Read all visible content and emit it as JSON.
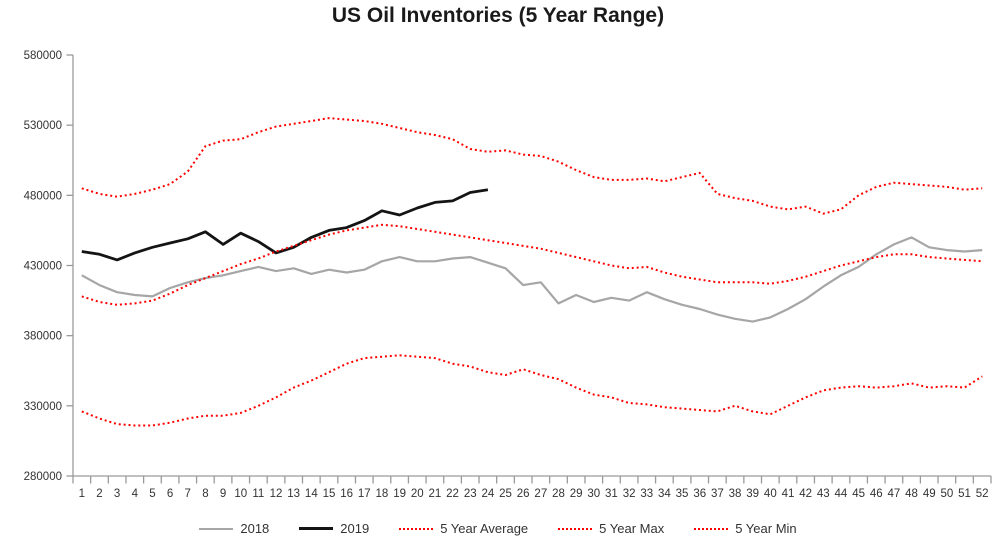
{
  "chart_data": {
    "type": "line",
    "title": "US Oil Inventories (5 Year Range)",
    "xlabel": "",
    "ylabel": "",
    "ylim": [
      280000,
      580000
    ],
    "ytick_step": 50000,
    "y_ticks": [
      580000,
      530000,
      480000,
      430000,
      380000,
      330000,
      280000
    ],
    "x": [
      1,
      2,
      3,
      4,
      5,
      6,
      7,
      8,
      9,
      10,
      11,
      12,
      13,
      14,
      15,
      16,
      17,
      18,
      19,
      20,
      21,
      22,
      23,
      24,
      25,
      26,
      27,
      28,
      29,
      30,
      31,
      32,
      33,
      34,
      35,
      36,
      37,
      38,
      39,
      40,
      41,
      42,
      43,
      44,
      45,
      46,
      47,
      48,
      49,
      50,
      51,
      52
    ],
    "grid": false,
    "legend_position": "bottom",
    "axis_color": "#9a9a9a",
    "tick_text_color": "#333333",
    "series": [
      {
        "name": "2018",
        "color": "#a6a6a6",
        "style": "solid",
        "width": 2.2,
        "values": [
          423000,
          416000,
          411000,
          409000,
          408000,
          414000,
          418000,
          421000,
          423000,
          426000,
          429000,
          426000,
          428000,
          424000,
          427000,
          425000,
          427000,
          433000,
          436000,
          433000,
          433000,
          435000,
          436000,
          432000,
          428000,
          416000,
          418000,
          403000,
          409000,
          404000,
          407000,
          405000,
          411000,
          406000,
          402000,
          399000,
          395000,
          392000,
          390000,
          393000,
          399000,
          406000,
          415000,
          423000,
          429000,
          438000,
          445000,
          450000,
          443000,
          441000,
          440000,
          441000
        ]
      },
      {
        "name": "2019",
        "color": "#141414",
        "style": "solid",
        "width": 2.8,
        "values": [
          440000,
          438000,
          434000,
          439000,
          443000,
          446000,
          449000,
          454000,
          445000,
          453000,
          447000,
          439000,
          443000,
          450000,
          455000,
          457000,
          462000,
          469000,
          466000,
          471000,
          475000,
          476000,
          482000,
          484000,
          null,
          null,
          null,
          null,
          null,
          null,
          null,
          null,
          null,
          null,
          null,
          null,
          null,
          null,
          null,
          null,
          null,
          null,
          null,
          null,
          null,
          null,
          null,
          null,
          null,
          null,
          null,
          null
        ]
      },
      {
        "name": "5 Year Average",
        "color": "#ff0000",
        "style": "dotted",
        "width": 2,
        "values": [
          408000,
          404000,
          402000,
          403000,
          405000,
          410000,
          416000,
          421000,
          426000,
          431000,
          435000,
          440000,
          444000,
          448000,
          452000,
          455000,
          457000,
          459000,
          458000,
          456000,
          454000,
          452000,
          450000,
          448000,
          446000,
          444000,
          442000,
          439000,
          436000,
          433000,
          430000,
          428000,
          429000,
          425000,
          422000,
          420000,
          418000,
          418000,
          418000,
          417000,
          419000,
          422000,
          426000,
          430000,
          433000,
          436000,
          438000,
          438000,
          436000,
          435000,
          434000,
          433000
        ]
      },
      {
        "name": "5 Year Max",
        "color": "#ff0000",
        "style": "dotted",
        "width": 2,
        "values": [
          485000,
          481000,
          479000,
          481000,
          484000,
          488000,
          497000,
          515000,
          519000,
          520000,
          525000,
          529000,
          531000,
          533000,
          535000,
          534000,
          533000,
          531000,
          528000,
          525000,
          523000,
          520000,
          513000,
          511000,
          512000,
          509000,
          508000,
          504000,
          498000,
          493000,
          491000,
          491000,
          492000,
          490000,
          493000,
          496000,
          481000,
          478000,
          476000,
          472000,
          470000,
          472000,
          467000,
          470000,
          480000,
          486000,
          489000,
          488000,
          487000,
          486000,
          484000,
          485000
        ]
      },
      {
        "name": "5 Year Min",
        "color": "#ff0000",
        "style": "dotted",
        "width": 2,
        "values": [
          326000,
          321000,
          317000,
          316000,
          316000,
          318000,
          321000,
          323000,
          323000,
          325000,
          330000,
          336000,
          343000,
          348000,
          354000,
          360000,
          364000,
          365000,
          366000,
          365000,
          364000,
          360000,
          358000,
          354000,
          352000,
          356000,
          352000,
          349000,
          343000,
          338000,
          336000,
          332000,
          331000,
          329000,
          328000,
          327000,
          326000,
          330000,
          326000,
          324000,
          330000,
          336000,
          341000,
          343000,
          344000,
          343000,
          344000,
          346000,
          343000,
          344000,
          343000,
          351000
        ]
      }
    ]
  }
}
